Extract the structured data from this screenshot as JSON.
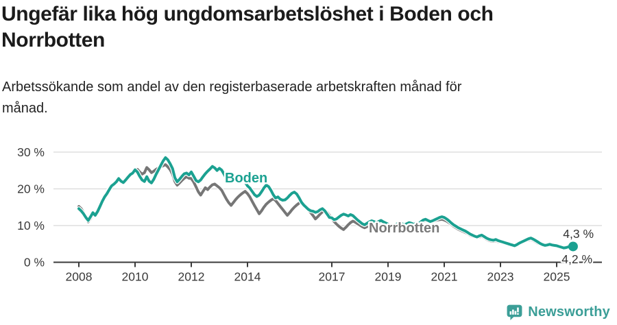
{
  "header": {
    "title_line1": "Ungefär lika hög ungdomsarbetslöshet i Boden och",
    "title_line2": "Norrbotten",
    "subtitle_line1": "Arbetssökande som andel av den registerbaserade arbetskraften månad för",
    "subtitle_line2": "månad."
  },
  "chart_data": {
    "type": "line",
    "x_start_year": 2008,
    "points_per_year": 12,
    "x_tick_labels": [
      "2008",
      "2010",
      "2012",
      "2014",
      "2017",
      "2019",
      "2021",
      "2023",
      "2025"
    ],
    "x_tick_years": [
      2008,
      2010,
      2012,
      2014,
      2017,
      2019,
      2021,
      2023,
      2025
    ],
    "y_ticks": [
      {
        "label": "30 %",
        "value": 30
      },
      {
        "label": "20 %",
        "value": 20
      },
      {
        "label": "10 %",
        "value": 10
      },
      {
        "label": "0 %",
        "value": 0
      }
    ],
    "ylim": [
      0,
      30
    ],
    "grid": "horizontal",
    "grid_color": "#dcdcdc",
    "axis_color": "#3a3a3a",
    "series": [
      {
        "name": "Norrbotten",
        "color": "#767676",
        "end_label": "4,2 %",
        "end_dot": false,
        "values": [
          15.2,
          14.6,
          13.6,
          12.4,
          11.0,
          11.9,
          13.1,
          12.6,
          13.7,
          15.1,
          16.5,
          18.0,
          19.0,
          20.0,
          21.0,
          21.6,
          22.0,
          22.6,
          21.9,
          21.5,
          22.3,
          23.2,
          24.0,
          24.6,
          25.0,
          25.3,
          24.6,
          24.0,
          24.4,
          25.8,
          25.2,
          24.4,
          24.8,
          25.3,
          25.7,
          26.0,
          26.3,
          26.6,
          26.0,
          25.2,
          24.0,
          22.0,
          21.0,
          21.6,
          22.3,
          22.9,
          23.3,
          22.9,
          22.8,
          21.9,
          20.6,
          19.2,
          18.3,
          19.3,
          20.3,
          19.8,
          20.5,
          21.1,
          21.3,
          20.8,
          20.3,
          19.6,
          18.4,
          17.2,
          16.2,
          15.5,
          16.3,
          17.1,
          17.8,
          18.4,
          18.9,
          19.3,
          18.7,
          17.8,
          16.6,
          15.4,
          14.3,
          13.2,
          14.0,
          15.0,
          15.8,
          16.4,
          16.9,
          17.3,
          16.8,
          16.0,
          15.2,
          14.4,
          13.6,
          12.8,
          13.5,
          14.3,
          15.0,
          15.6,
          16.1,
          16.5,
          15.9,
          15.1,
          14.3,
          13.5,
          12.7,
          11.8,
          12.4,
          13.1,
          13.7,
          14.2,
          13.6,
          12.8,
          11.9,
          11.1,
          10.4,
          9.8,
          9.3,
          8.9,
          9.5,
          10.2,
          10.8,
          11.2,
          10.9,
          10.5,
          10.1,
          9.7,
          9.4,
          9.7,
          10.0,
          10.3,
          10.0,
          9.7,
          9.9,
          10.2,
          10.0,
          9.8,
          9.6,
          9.4,
          9.2,
          9.4,
          9.7,
          9.9,
          9.7,
          9.5,
          9.7,
          9.9,
          10.1,
          10.3,
          10.2,
          10.4,
          10.8,
          11.2,
          11.4,
          11.2,
          11.0,
          11.1,
          11.3,
          11.5,
          11.6,
          11.7,
          11.5,
          11.2,
          10.8,
          10.3,
          9.8,
          9.4,
          9.0,
          8.7,
          8.4,
          8.1,
          7.8,
          7.4,
          7.1,
          6.9,
          6.7,
          6.9,
          7.1,
          6.7,
          6.3,
          6.0,
          5.8,
          5.7,
          5.9,
          5.6,
          5.5,
          5.3,
          5.1,
          4.9,
          4.7,
          4.5,
          4.3,
          4.6,
          5.0,
          5.3,
          5.6,
          5.9,
          6.1,
          6.3,
          6.0,
          5.6,
          5.2,
          4.9,
          4.6,
          4.4,
          4.5,
          4.7,
          4.5,
          4.4,
          4.3,
          4.1,
          3.9,
          3.7,
          3.8,
          4.0,
          4.1,
          4.2
        ]
      },
      {
        "name": "Boden",
        "color": "#1ba191",
        "end_label": "4,3 %",
        "end_dot": true,
        "values": [
          14.6,
          14.0,
          13.2,
          12.2,
          11.4,
          12.4,
          13.5,
          12.8,
          13.8,
          15.2,
          16.6,
          17.8,
          18.7,
          19.8,
          20.8,
          21.3,
          21.9,
          22.8,
          22.1,
          21.7,
          22.4,
          23.2,
          23.9,
          24.3,
          25.2,
          24.6,
          23.4,
          22.4,
          22.0,
          23.3,
          22.1,
          21.6,
          22.6,
          24.0,
          25.2,
          26.4,
          27.6,
          28.5,
          27.9,
          26.8,
          25.5,
          23.0,
          21.9,
          22.6,
          23.4,
          24.1,
          24.3,
          23.8,
          24.6,
          23.5,
          22.3,
          21.9,
          22.4,
          23.3,
          24.1,
          24.8,
          25.4,
          26.1,
          25.7,
          25.0,
          25.6,
          25.1,
          24.0,
          22.7,
          22.0,
          22.5,
          23.1,
          22.4,
          22.9,
          23.4,
          22.7,
          21.8,
          20.8,
          20.2,
          19.3,
          18.4,
          17.9,
          18.3,
          19.2,
          20.2,
          21.0,
          20.6,
          19.6,
          18.4,
          17.5,
          17.8,
          17.2,
          16.9,
          17.0,
          17.5,
          18.2,
          18.8,
          19.1,
          18.6,
          17.6,
          16.4,
          15.6,
          15.0,
          14.4,
          14.0,
          13.9,
          13.6,
          13.8,
          14.3,
          14.6,
          14.0,
          13.1,
          12.2,
          12.1,
          11.6,
          11.8,
          12.3,
          12.8,
          13.1,
          12.9,
          12.6,
          13.0,
          12.7,
          12.1,
          11.5,
          11.0,
          10.5,
          10.2,
          10.6,
          11.0,
          11.3,
          11.1,
          10.8,
          11.1,
          11.4,
          11.0,
          10.7,
          10.4,
          10.1,
          9.9,
          10.2,
          10.5,
          10.8,
          10.5,
          10.2,
          10.5,
          10.8,
          10.6,
          10.3,
          10.7,
          10.5,
          11.0,
          11.5,
          11.7,
          11.4,
          11.1,
          11.3,
          11.6,
          11.9,
          12.2,
          12.4,
          12.2,
          11.8,
          11.3,
          10.7,
          10.2,
          9.8,
          9.4,
          9.1,
          8.8,
          8.5,
          8.1,
          7.7,
          7.4,
          7.1,
          6.9,
          7.2,
          7.4,
          7.0,
          6.6,
          6.3,
          6.1,
          6.0,
          6.2,
          5.9,
          5.7,
          5.5,
          5.3,
          5.1,
          4.9,
          4.7,
          4.5,
          4.8,
          5.2,
          5.5,
          5.8,
          6.1,
          6.4,
          6.6,
          6.3,
          5.9,
          5.5,
          5.1,
          4.8,
          4.6,
          4.7,
          4.9,
          4.7,
          4.6,
          4.5,
          4.3,
          4.1,
          3.9,
          4.0,
          4.2,
          4.3,
          4.3
        ]
      }
    ],
    "series_labels": [
      {
        "text": "Boden",
        "color": "#1ba191"
      },
      {
        "text": "Norrbotten",
        "color": "#7a7a7a"
      }
    ]
  },
  "footer": {
    "brand": "Newsworthy",
    "brand_color": "#3b9e97",
    "logo_icon": "newsworthy-speech-bubble-barchart-icon"
  }
}
